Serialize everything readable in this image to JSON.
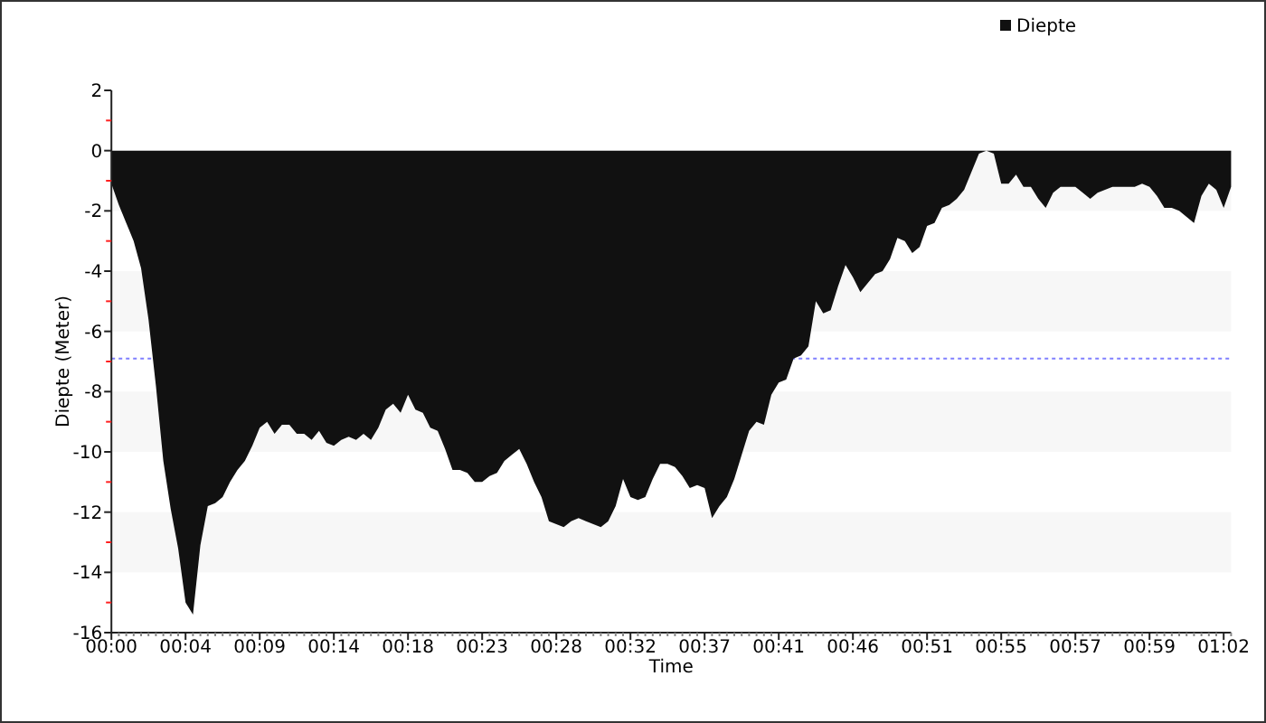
{
  "chart_data": {
    "type": "area",
    "xlabel": "Time",
    "ylabel": "Diepte (Meter)",
    "categories": [
      "00:00",
      null,
      null,
      null,
      null,
      null,
      null,
      null,
      null,
      null,
      "00:04",
      null,
      null,
      null,
      null,
      null,
      null,
      null,
      null,
      null,
      "00:09",
      null,
      null,
      null,
      null,
      null,
      null,
      null,
      null,
      null,
      "00:14",
      null,
      null,
      null,
      null,
      null,
      null,
      null,
      null,
      null,
      "00:18",
      null,
      null,
      null,
      null,
      null,
      null,
      null,
      null,
      null,
      "00:23",
      null,
      null,
      null,
      null,
      null,
      null,
      null,
      null,
      null,
      "00:28",
      null,
      null,
      null,
      null,
      null,
      null,
      null,
      null,
      null,
      "00:32",
      null,
      null,
      null,
      null,
      null,
      null,
      null,
      null,
      null,
      "00:37",
      null,
      null,
      null,
      null,
      null,
      null,
      null,
      null,
      null,
      "00:41",
      null,
      null,
      null,
      null,
      null,
      null,
      null,
      null,
      null,
      "00:46",
      null,
      null,
      null,
      null,
      null,
      null,
      null,
      null,
      null,
      "00:51",
      null,
      null,
      null,
      null,
      null,
      null,
      null,
      null,
      null,
      "00:55",
      null,
      null,
      null,
      null,
      null,
      null,
      null,
      null,
      null,
      "00:57",
      null,
      null,
      null,
      null,
      null,
      null,
      null,
      null,
      null,
      "00:59",
      null,
      null,
      null,
      null,
      null,
      null,
      null,
      null,
      null,
      "01:02",
      null
    ],
    "series": [
      {
        "name": "Diepte",
        "color": "#111111",
        "values": [
          -1.1,
          -1.8,
          -2.4,
          -3.0,
          -3.9,
          -5.6,
          -7.8,
          -10.3,
          -11.9,
          -13.2,
          -15.0,
          -15.4,
          -13.1,
          -11.8,
          -11.7,
          -11.5,
          -11.0,
          -10.6,
          -10.3,
          -9.8,
          -9.2,
          -9.0,
          -9.4,
          -9.1,
          -9.1,
          -9.4,
          -9.4,
          -9.6,
          -9.3,
          -9.7,
          -9.8,
          -9.6,
          -9.5,
          -9.6,
          -9.4,
          -9.6,
          -9.2,
          -8.6,
          -8.4,
          -8.7,
          -8.1,
          -8.6,
          -8.7,
          -9.2,
          -9.3,
          -9.9,
          -10.6,
          -10.6,
          -10.7,
          -11.0,
          -11.0,
          -10.8,
          -10.7,
          -10.3,
          -10.1,
          -9.9,
          -10.4,
          -11.0,
          -11.5,
          -12.3,
          -12.4,
          -12.5,
          -12.3,
          -12.2,
          -12.3,
          -12.4,
          -12.5,
          -12.3,
          -11.8,
          -10.9,
          -11.5,
          -11.6,
          -11.5,
          -10.9,
          -10.4,
          -10.4,
          -10.5,
          -10.8,
          -11.2,
          -11.1,
          -11.2,
          -12.2,
          -11.8,
          -11.5,
          -10.9,
          -10.1,
          -9.3,
          -9.0,
          -9.1,
          -8.1,
          -7.7,
          -7.6,
          -6.9,
          -6.8,
          -6.5,
          -5.0,
          -5.4,
          -5.3,
          -4.5,
          -3.8,
          -4.2,
          -4.7,
          -4.4,
          -4.1,
          -4.0,
          -3.6,
          -2.9,
          -3.0,
          -3.4,
          -3.2,
          -2.5,
          -2.4,
          -1.9,
          -1.8,
          -1.6,
          -1.3,
          -0.7,
          -0.1,
          0,
          -0.1,
          -1.1,
          -1.1,
          -0.8,
          -1.2,
          -1.2,
          -1.6,
          -1.9,
          -1.4,
          -1.2,
          -1.2,
          -1.2,
          -1.4,
          -1.6,
          -1.4,
          -1.3,
          -1.2,
          -1.2,
          -1.2,
          -1.2,
          -1.1,
          -1.2,
          -1.5,
          -1.9,
          -1.9,
          -2.0,
          -2.2,
          -2.4,
          -1.5,
          -1.1,
          -1.3,
          -1.9,
          -1.2
        ]
      }
    ],
    "ylim": [
      -16,
      2
    ],
    "yticks": [
      -16,
      {
        "value": -15,
        "label": null
      },
      -14,
      {
        "value": -13,
        "label": null
      },
      -12,
      {
        "value": -11,
        "label": null
      },
      -10,
      {
        "value": -9,
        "label": null
      },
      -8,
      {
        "value": -7,
        "label": null
      },
      -6,
      {
        "value": -5,
        "label": null
      },
      -4,
      {
        "value": -3,
        "label": null
      },
      -2,
      {
        "value": -1,
        "label": null
      },
      0,
      {
        "value": 1,
        "label": null
      },
      2
    ],
    "ref_lines": [
      {
        "axis": "y",
        "value": -6.9,
        "color": "#8080ff",
        "line_style": "dotted"
      }
    ],
    "bands": [
      {
        "axis": "y",
        "from": 0,
        "to": -2,
        "color": "#f7f7f7"
      },
      {
        "axis": "y",
        "from": -4,
        "to": -6,
        "color": "#f7f7f7"
      },
      {
        "axis": "y",
        "from": -8,
        "to": -10,
        "color": "#f7f7f7"
      },
      {
        "axis": "y",
        "from": -12,
        "to": -14,
        "color": "#f7f7f7"
      }
    ],
    "legend": "top right"
  }
}
